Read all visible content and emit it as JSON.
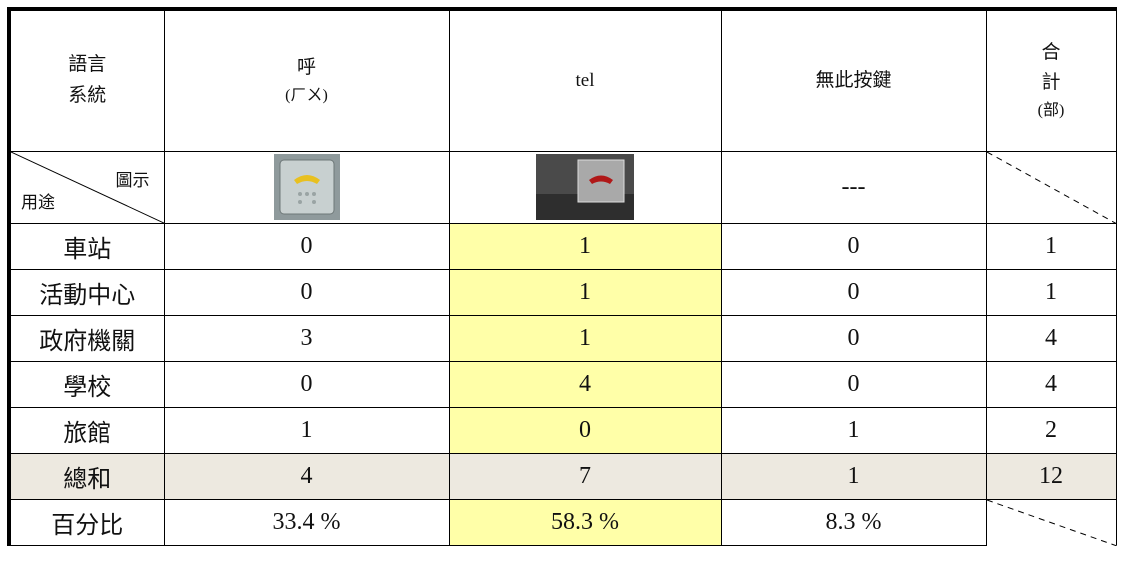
{
  "header": [
    [
      "語言",
      "系統"
    ],
    [
      "呼",
      "(ㄏㄨ)"
    ],
    [
      "tel"
    ],
    [
      "無此按鍵"
    ],
    [
      "合",
      "計",
      "(部)"
    ]
  ],
  "icon_row": {
    "diag_top": "圖示",
    "diag_bottom": "用途",
    "none": "---"
  },
  "rows": [
    [
      "車站",
      0,
      1,
      0,
      1
    ],
    [
      "活動中心",
      0,
      1,
      0,
      1
    ],
    [
      "政府機關",
      3,
      1,
      0,
      4
    ],
    [
      "學校",
      0,
      4,
      0,
      4
    ],
    [
      "旅館",
      1,
      0,
      1,
      2
    ]
  ],
  "total": [
    "總和",
    4,
    7,
    1,
    12
  ],
  "percent": [
    "百分比",
    "33.4 %",
    "58.3 %",
    "8.3 %"
  ]
}
